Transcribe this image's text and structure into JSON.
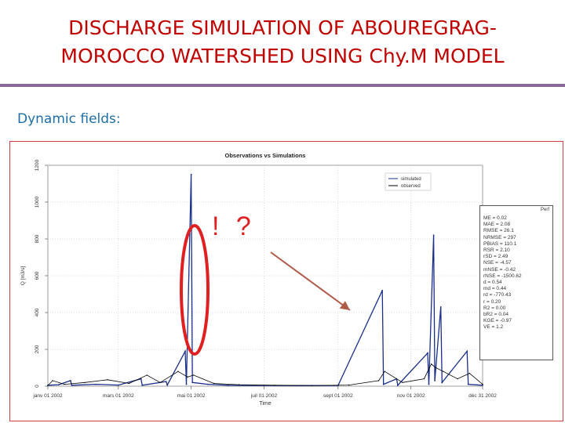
{
  "slide": {
    "title": "DISCHARGE SIMULATION OF ABOUREGRAG-\nMOROCCO WATERSHED USING Chy.M MODEL",
    "subtitle": "Dynamic fields:",
    "annotation": "! ?"
  },
  "colors": {
    "title": "#c00000",
    "subtitle": "#1e6fa8",
    "rule": "#8a6a9a",
    "sim": "#1a2f8a",
    "obs": "#000000",
    "highlight": "#e02020",
    "arrow": "#b05a4a"
  },
  "stats": {
    "header": "Perf",
    "lines": [
      "ME = 0.02",
      "MAE = 2.08",
      "RMSE = 26.1",
      "NRMSE = 297",
      "PBIAS = 110.1",
      "RSR = 2.10",
      "rSD = 2.49",
      "NSE = -4.57",
      "mNSE = -0.42",
      "rNSE = -1500.62",
      "d = 0.54",
      "md = 0.44",
      "rd = -770.43",
      "r = 0.20",
      "R2 = 0.00",
      "bR2 = 0.04",
      "KGE = -0.97",
      "VE = 1.2"
    ]
  },
  "chart_data": {
    "type": "line",
    "title": "Observations vs Simulations",
    "xlabel": "Time",
    "ylabel": "Q [m3/s]",
    "ylim": [
      0,
      1200
    ],
    "yticks": [
      0,
      200,
      400,
      600,
      800,
      1000,
      1200
    ],
    "xlim": [
      "2002-01-01",
      "2002-12-31"
    ],
    "xticks": [
      "janv 01 2002",
      "mars 01 2002",
      "mai 01 2002",
      "juil 01 2002",
      "sept 01 2002",
      "nov 01 2002",
      "déc 31 2002"
    ],
    "legend": {
      "position": "top-right",
      "entries": [
        "simulated",
        "observed"
      ]
    },
    "grid": true,
    "series": [
      {
        "name": "simulated",
        "points": [
          [
            "2002-01-01",
            5
          ],
          [
            "2002-01-10",
            8
          ],
          [
            "2002-01-20",
            30
          ],
          [
            "2002-01-21",
            5
          ],
          [
            "2002-02-10",
            10
          ],
          [
            "2002-03-01",
            6
          ],
          [
            "2002-03-20",
            40
          ],
          [
            "2002-03-21",
            5
          ],
          [
            "2002-04-10",
            25
          ],
          [
            "2002-04-11",
            6
          ],
          [
            "2002-04-26",
            190
          ],
          [
            "2002-04-27",
            10
          ],
          [
            "2002-05-01",
            1150
          ],
          [
            "2002-05-02",
            20
          ],
          [
            "2002-05-15",
            10
          ],
          [
            "2002-06-01",
            5
          ],
          [
            "2002-07-01",
            4
          ],
          [
            "2002-08-01",
            3
          ],
          [
            "2002-09-01",
            4
          ],
          [
            "2002-10-08",
            520
          ],
          [
            "2002-10-09",
            10
          ],
          [
            "2002-10-20",
            40
          ],
          [
            "2002-10-21",
            5
          ],
          [
            "2002-11-15",
            180
          ],
          [
            "2002-11-16",
            10
          ],
          [
            "2002-11-20",
            820
          ],
          [
            "2002-11-21",
            30
          ],
          [
            "2002-11-26",
            430
          ],
          [
            "2002-11-27",
            20
          ],
          [
            "2002-12-18",
            190
          ],
          [
            "2002-12-19",
            10
          ],
          [
            "2002-12-31",
            5
          ]
        ]
      },
      {
        "name": "observed",
        "points": [
          [
            "2002-01-01",
            4
          ],
          [
            "2002-01-05",
            30
          ],
          [
            "2002-01-15",
            10
          ],
          [
            "2002-02-01",
            20
          ],
          [
            "2002-02-20",
            35
          ],
          [
            "2002-03-10",
            15
          ],
          [
            "2002-03-25",
            60
          ],
          [
            "2002-04-05",
            20
          ],
          [
            "2002-04-20",
            80
          ],
          [
            "2002-04-28",
            50
          ],
          [
            "2002-05-03",
            60
          ],
          [
            "2002-05-20",
            15
          ],
          [
            "2002-06-10",
            8
          ],
          [
            "2002-07-10",
            5
          ],
          [
            "2002-08-10",
            4
          ],
          [
            "2002-09-10",
            6
          ],
          [
            "2002-10-05",
            30
          ],
          [
            "2002-10-10",
            80
          ],
          [
            "2002-10-25",
            20
          ],
          [
            "2002-11-12",
            40
          ],
          [
            "2002-11-18",
            120
          ],
          [
            "2002-11-22",
            100
          ],
          [
            "2002-11-28",
            80
          ],
          [
            "2002-12-10",
            40
          ],
          [
            "2002-12-20",
            70
          ],
          [
            "2002-12-31",
            10
          ]
        ]
      }
    ]
  }
}
